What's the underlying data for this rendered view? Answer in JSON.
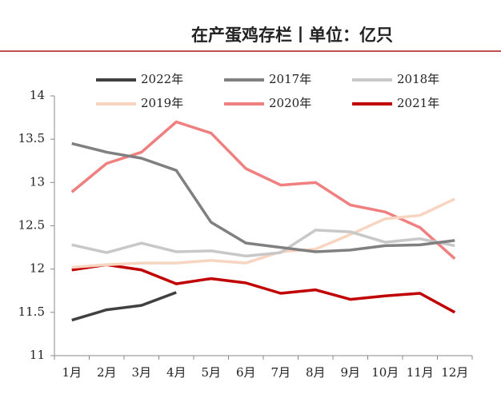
{
  "chart_data": {
    "type": "line",
    "title": "在产蛋鸡存栏丨单位：亿只",
    "categories": [
      "1月",
      "2月",
      "3月",
      "4月",
      "5月",
      "6月",
      "7月",
      "8月",
      "9月",
      "10月",
      "11月",
      "12月"
    ],
    "series": [
      {
        "name": "2022年",
        "color": "#404040",
        "values": [
          11.41,
          11.53,
          11.58,
          11.73,
          null,
          null,
          null,
          null,
          null,
          null,
          null,
          null
        ]
      },
      {
        "name": "2017年",
        "color": "#808080",
        "values": [
          13.45,
          13.35,
          13.28,
          13.14,
          12.54,
          12.3,
          12.25,
          12.2,
          12.22,
          12.27,
          12.28,
          12.33
        ]
      },
      {
        "name": "2018年",
        "color": "#c8c8c8",
        "values": [
          12.28,
          12.19,
          12.3,
          12.2,
          12.21,
          12.15,
          12.19,
          12.45,
          12.43,
          12.31,
          12.35,
          12.27
        ]
      },
      {
        "name": "2019年",
        "color": "#f8d5c0",
        "values": [
          12.02,
          12.05,
          12.07,
          12.07,
          12.1,
          12.07,
          12.2,
          12.23,
          12.4,
          12.58,
          12.62,
          12.81
        ]
      },
      {
        "name": "2020年",
        "color": "#f08080",
        "values": [
          12.89,
          13.22,
          13.35,
          13.7,
          13.57,
          13.16,
          12.97,
          13.0,
          12.74,
          12.66,
          12.48,
          12.12
        ]
      },
      {
        "name": "2021年",
        "color": "#c00000",
        "values": [
          11.99,
          12.05,
          11.99,
          11.83,
          11.89,
          11.84,
          11.72,
          11.76,
          11.65,
          11.69,
          11.72,
          11.5
        ]
      }
    ],
    "ylim": [
      11,
      14
    ],
    "yticks": [
      11,
      11.5,
      12,
      12.5,
      13,
      13.5,
      14
    ],
    "grid": false
  }
}
